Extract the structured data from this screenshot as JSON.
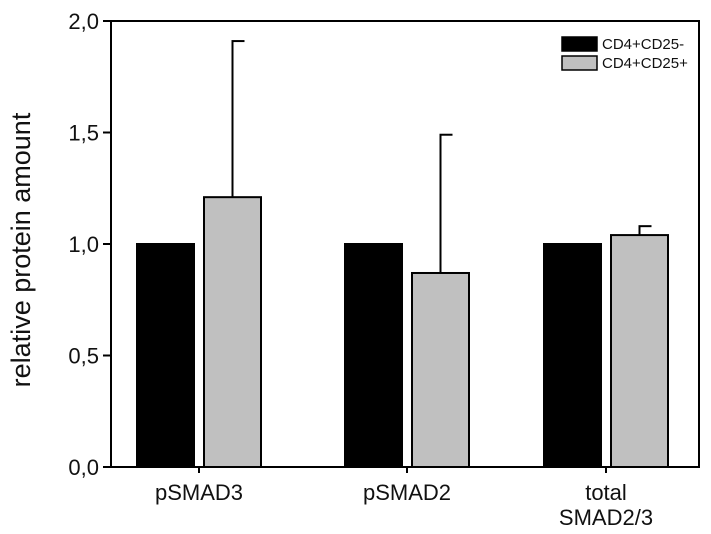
{
  "chart_data": {
    "type": "bar",
    "title": "",
    "xlabel": "",
    "ylabel": "relative protein amount",
    "ylim": [
      0,
      2.0
    ],
    "yticks": [
      0.0,
      0.5,
      1.0,
      1.5,
      2.0
    ],
    "ytick_labels": [
      "0,0",
      "0,5",
      "1,0",
      "1,5",
      "2,0"
    ],
    "categories": [
      [
        "pSMAD3"
      ],
      [
        "pSMAD2"
      ],
      [
        "total",
        "SMAD2/3"
      ]
    ],
    "series": [
      {
        "name": "CD4+CD25-",
        "color": "#000000",
        "values": [
          1.0,
          1.0,
          1.0
        ],
        "errors": [
          null,
          null,
          null
        ]
      },
      {
        "name": "CD4+CD25+",
        "color": "#c0c0c0",
        "values": [
          1.21,
          0.87,
          1.04
        ],
        "errors": [
          0.7,
          0.62,
          0.04
        ]
      }
    ],
    "legend_position": "top-right",
    "grid": false
  }
}
